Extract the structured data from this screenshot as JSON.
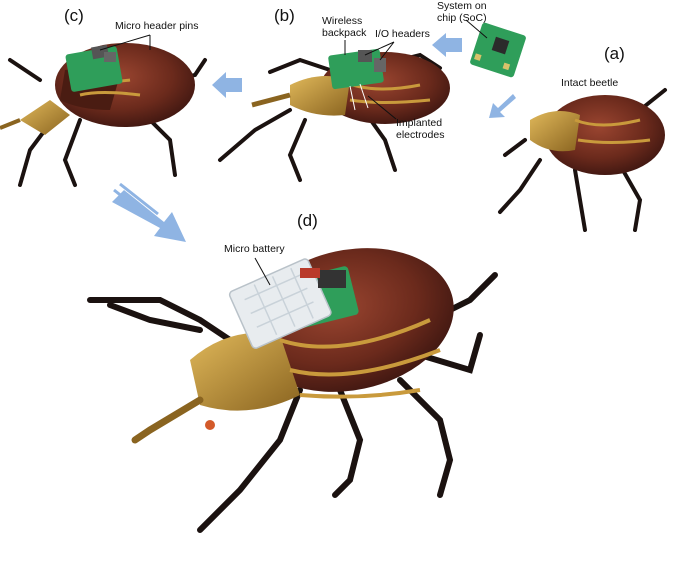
{
  "panels": {
    "a": "(a)",
    "b": "(b)",
    "c": "(c)",
    "d": "(d)"
  },
  "annotations": {
    "micro_header_pins": "Micro header pins",
    "wireless_backpack_line1": "Wireless",
    "wireless_backpack_line2": "backpack",
    "io_headers": "I/O headers",
    "soc_line1": "System on",
    "soc_line2": "chip (SoC)",
    "intact_beetle": "Intact beetle",
    "implanted_electrodes_line1": "Implanted",
    "implanted_electrodes_line2": "electrodes",
    "micro_battery": "Micro battery"
  },
  "colors": {
    "arrow": "#8fb4e3",
    "shell": "#6b2a1c",
    "shell_dark": "#3b1510",
    "stripe": "#c99a3c",
    "board": "#2f9e5a",
    "board_dark": "#1d6f3e",
    "battery": "#e8ecef",
    "leg": "#1b1210"
  }
}
